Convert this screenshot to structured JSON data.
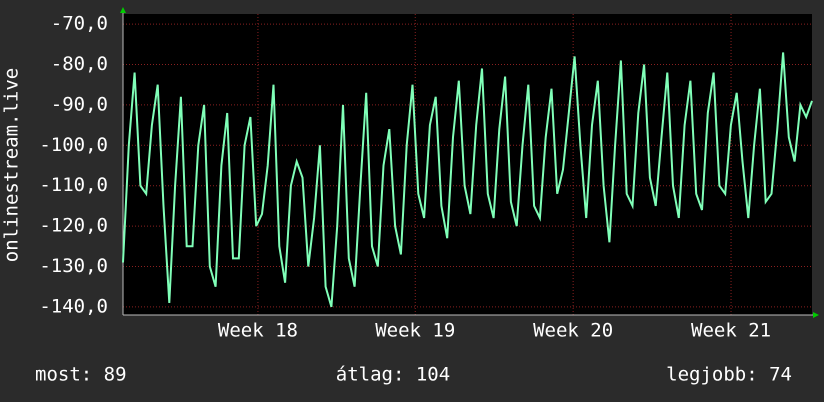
{
  "chart_data": {
    "type": "line",
    "ylabel": "onlinestream.live",
    "ylim": [
      -142,
      -67.5
    ],
    "yticks": [
      {
        "value": -70,
        "label": "-70,0"
      },
      {
        "value": -80,
        "label": "-80,0"
      },
      {
        "value": -90,
        "label": "-90,0"
      },
      {
        "value": -100,
        "label": "-100,0"
      },
      {
        "value": -110,
        "label": "-110,0"
      },
      {
        "value": -120,
        "label": "-120,0"
      },
      {
        "value": -130,
        "label": "-130,0"
      },
      {
        "value": -140,
        "label": "-140,0"
      }
    ],
    "xlim": [
      0,
      120
    ],
    "xticks": [
      {
        "value": 23.5,
        "label": "Week 18"
      },
      {
        "value": 50.9,
        "label": "Week 19"
      },
      {
        "value": 78.4,
        "label": "Week 20"
      },
      {
        "value": 105.9,
        "label": "Week 21"
      }
    ],
    "grid": true,
    "series": [
      {
        "color": "#80ffb8",
        "values": [
          -129,
          -100,
          -82,
          -110,
          -112,
          -95,
          -85,
          -115,
          -139,
          -110,
          -88,
          -125,
          -125,
          -100,
          -90,
          -130,
          -135,
          -105,
          -92,
          -128,
          -128,
          -100,
          -93,
          -120,
          -117,
          -105,
          -85,
          -125,
          -134,
          -110,
          -104,
          -108,
          -130,
          -118,
          -100,
          -135,
          -140,
          -120,
          -90,
          -128,
          -135,
          -110,
          -87,
          -125,
          -130,
          -105,
          -96,
          -120,
          -127,
          -100,
          -85,
          -112,
          -118,
          -95,
          -88,
          -115,
          -123,
          -98,
          -84,
          -110,
          -117,
          -95,
          -81,
          -112,
          -118,
          -96,
          -83,
          -114,
          -120,
          -100,
          -85,
          -115,
          -118,
          -98,
          -86,
          -112,
          -106,
          -92,
          -78,
          -100,
          -118,
          -95,
          -84,
          -110,
          -124,
          -100,
          -79,
          -112,
          -115,
          -92,
          -80,
          -108,
          -115,
          -98,
          -82,
          -110,
          -118,
          -95,
          -84,
          -112,
          -116,
          -92,
          -82,
          -110,
          -112,
          -95,
          -87,
          -104,
          -118,
          -100,
          -86,
          -114,
          -112,
          -96,
          -77,
          -98,
          -104,
          -90,
          -93,
          -89
        ]
      }
    ],
    "stats": [
      "most: 89",
      "átlag: 104",
      "legjobb: 74"
    ]
  }
}
